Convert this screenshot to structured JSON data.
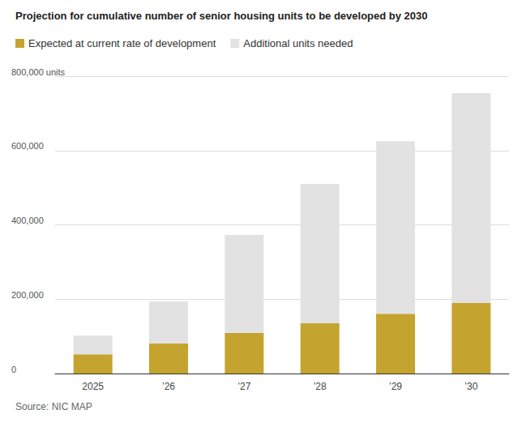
{
  "chart_data": {
    "type": "bar",
    "title": "Projection for cumulative number of senior housing units to be developed by 2030",
    "source": "Source: NIC MAP",
    "categories": [
      "2025",
      "’26",
      "’27",
      "’28",
      "’29",
      "’30"
    ],
    "series": [
      {
        "name": "Expected at current rate of development",
        "color": "#c4a42f",
        "values": [
          52000,
          81000,
          109000,
          135000,
          161000,
          190000
        ]
      },
      {
        "name": "Additional units needed",
        "color": "#e2e2e2",
        "values": [
          50000,
          113000,
          264000,
          375000,
          464000,
          564000
        ]
      }
    ],
    "ylim": [
      0,
      800000
    ],
    "yticks": [
      0,
      {
        "value": 200000,
        "label": "200,000"
      },
      {
        "value": 400000,
        "label": "400,000"
      },
      {
        "value": 600000,
        "label": "600,000"
      },
      {
        "value": 800000,
        "label": "800,000 units"
      }
    ],
    "stacked": true,
    "grid": true,
    "legend": "top-left"
  }
}
